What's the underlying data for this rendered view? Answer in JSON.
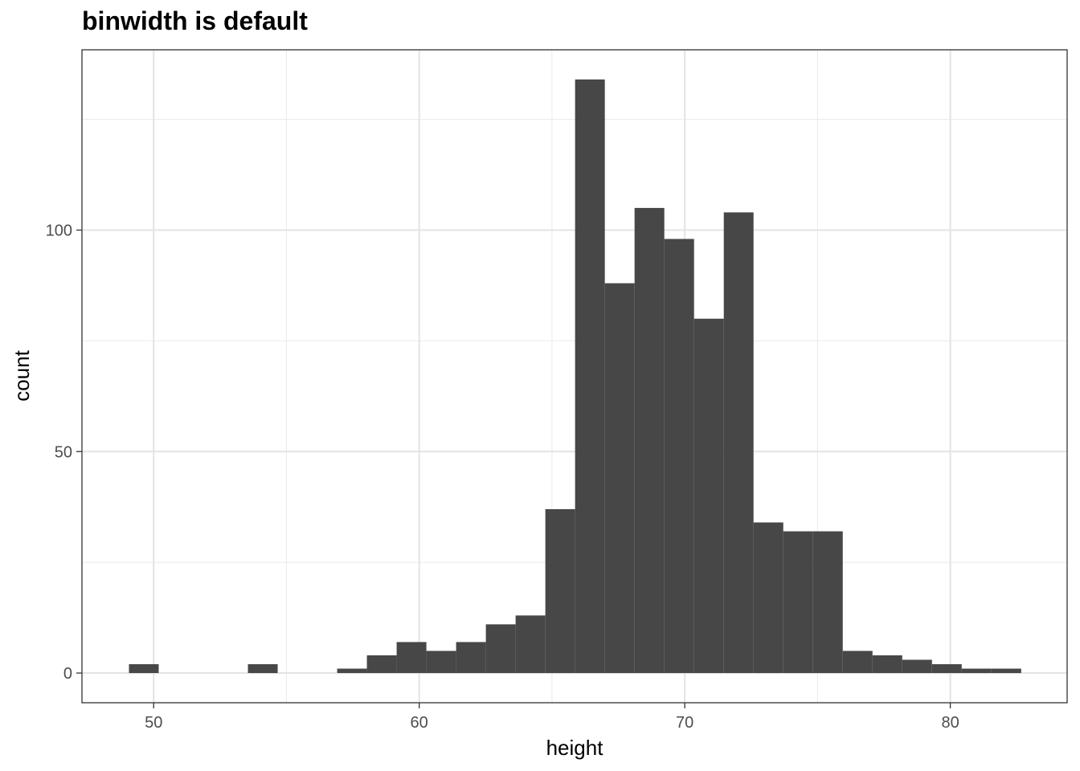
{
  "chart_data": {
    "type": "bar",
    "title": "binwidth is default",
    "xlabel": "height",
    "ylabel": "count",
    "xlim": [
      47.3,
      84.4
    ],
    "ylim": [
      -6.7,
      140.7
    ],
    "x_ticks": [
      50,
      60,
      70,
      80
    ],
    "y_ticks": [
      0,
      50,
      100
    ],
    "grid": true,
    "bar_color": "#474747",
    "bins": [
      {
        "start": 49.07,
        "end": 50.19,
        "count": 2
      },
      {
        "start": 50.19,
        "end": 51.31,
        "count": 0
      },
      {
        "start": 51.31,
        "end": 52.43,
        "count": 0
      },
      {
        "start": 52.43,
        "end": 53.55,
        "count": 0
      },
      {
        "start": 53.55,
        "end": 54.67,
        "count": 2
      },
      {
        "start": 54.67,
        "end": 55.79,
        "count": 0
      },
      {
        "start": 55.79,
        "end": 56.91,
        "count": 0
      },
      {
        "start": 56.91,
        "end": 58.03,
        "count": 1
      },
      {
        "start": 58.03,
        "end": 59.15,
        "count": 4
      },
      {
        "start": 59.15,
        "end": 60.27,
        "count": 7
      },
      {
        "start": 60.27,
        "end": 61.39,
        "count": 5
      },
      {
        "start": 61.39,
        "end": 62.51,
        "count": 7
      },
      {
        "start": 62.51,
        "end": 63.63,
        "count": 11
      },
      {
        "start": 63.63,
        "end": 64.75,
        "count": 13
      },
      {
        "start": 64.75,
        "end": 65.87,
        "count": 37
      },
      {
        "start": 65.87,
        "end": 66.99,
        "count": 134
      },
      {
        "start": 66.99,
        "end": 68.11,
        "count": 88
      },
      {
        "start": 68.11,
        "end": 69.23,
        "count": 105
      },
      {
        "start": 69.23,
        "end": 70.35,
        "count": 98
      },
      {
        "start": 70.35,
        "end": 71.47,
        "count": 80
      },
      {
        "start": 71.47,
        "end": 72.59,
        "count": 104
      },
      {
        "start": 72.59,
        "end": 73.71,
        "count": 34
      },
      {
        "start": 73.71,
        "end": 74.83,
        "count": 32
      },
      {
        "start": 74.83,
        "end": 75.95,
        "count": 32
      },
      {
        "start": 75.95,
        "end": 77.07,
        "count": 5
      },
      {
        "start": 77.07,
        "end": 78.19,
        "count": 4
      },
      {
        "start": 78.19,
        "end": 79.31,
        "count": 3
      },
      {
        "start": 79.31,
        "end": 80.43,
        "count": 2
      },
      {
        "start": 80.43,
        "end": 81.55,
        "count": 1
      },
      {
        "start": 81.55,
        "end": 82.67,
        "count": 1
      }
    ]
  }
}
